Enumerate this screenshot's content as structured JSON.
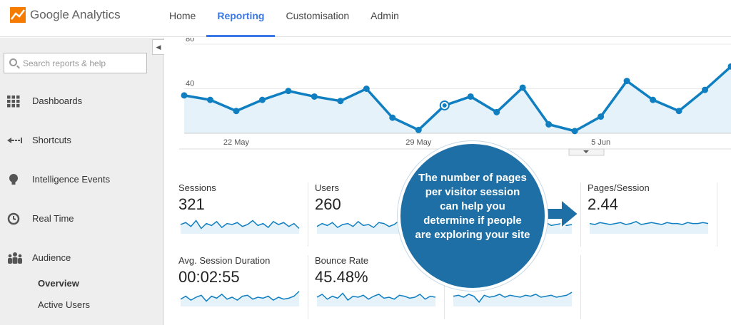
{
  "app": {
    "name": "Google Analytics"
  },
  "nav": [
    {
      "label": "Home",
      "active": false
    },
    {
      "label": "Reporting",
      "active": true
    },
    {
      "label": "Customisation",
      "active": false
    },
    {
      "label": "Admin",
      "active": false
    }
  ],
  "sidebar": {
    "collapse_glyph": "◀",
    "search_placeholder": "Search reports & help",
    "items": [
      {
        "label": "Dashboards",
        "icon": "dashboards-icon"
      },
      {
        "label": "Shortcuts",
        "icon": "shortcuts-icon"
      },
      {
        "label": "Intelligence Events",
        "icon": "lightbulb-icon"
      },
      {
        "label": "Real Time",
        "icon": "clock-icon"
      },
      {
        "label": "Audience",
        "icon": "people-icon"
      }
    ],
    "sub_items": [
      {
        "label": "Overview",
        "selected": true
      },
      {
        "label": "Active Users",
        "selected": false
      }
    ]
  },
  "chart_data": {
    "type": "line",
    "y_ticks": [
      "80",
      "40"
    ],
    "ylim": [
      0,
      80
    ],
    "x_tick_labels": [
      "22 May",
      "29 May",
      "5 Jun"
    ],
    "x_tick_index": [
      2,
      9,
      16
    ],
    "values": [
      34,
      30,
      20,
      30,
      38,
      33,
      29,
      40,
      14,
      3,
      25,
      33,
      19,
      41,
      8,
      2,
      15,
      47,
      30,
      20,
      39,
      60
    ],
    "highlight_index": 10,
    "line_color": "#0f7fc1",
    "fill_color": "#e5f2f9"
  },
  "metrics": [
    {
      "label": "Sessions",
      "value": "321"
    },
    {
      "label": "Users",
      "value": "260"
    },
    {
      "label": "",
      "value": ""
    },
    {
      "label": "Pages/Session",
      "value": "2.44"
    },
    {
      "label": "Avg. Session Duration",
      "value": "00:02:55"
    },
    {
      "label": "Bounce Rate",
      "value": "45.48%"
    },
    {
      "label": "",
      "value": ""
    }
  ],
  "sparklines": [
    [
      8,
      10,
      6,
      12,
      4,
      9,
      7,
      11,
      5,
      9,
      8,
      10,
      6,
      8,
      12,
      7,
      9,
      5,
      11,
      8,
      10,
      6,
      9,
      4
    ],
    [
      6,
      9,
      7,
      10,
      5,
      8,
      9,
      6,
      11,
      7,
      8,
      5,
      10,
      9,
      6,
      8,
      12,
      7,
      9,
      6,
      10,
      8,
      7,
      9
    ],
    [
      7,
      8,
      9,
      6,
      10,
      8,
      7,
      9,
      6,
      8,
      10,
      7,
      9,
      8,
      6,
      9,
      7,
      8,
      10,
      7,
      8,
      9,
      7,
      8
    ],
    [
      9,
      8,
      10,
      9,
      8,
      9,
      10,
      8,
      9,
      11,
      8,
      9,
      10,
      9,
      8,
      10,
      9,
      9,
      8,
      10,
      9,
      9,
      10,
      9
    ],
    [
      6,
      9,
      5,
      8,
      10,
      4,
      9,
      7,
      11,
      6,
      8,
      5,
      9,
      10,
      6,
      8,
      7,
      9,
      5,
      8,
      6,
      7,
      9,
      14
    ],
    [
      8,
      11,
      6,
      9,
      7,
      12,
      5,
      9,
      8,
      10,
      6,
      9,
      11,
      7,
      8,
      6,
      10,
      9,
      7,
      8,
      11,
      6,
      9,
      8
    ],
    [
      9,
      10,
      8,
      11,
      9,
      3,
      10,
      8,
      9,
      11,
      8,
      10,
      9,
      8,
      10,
      9,
      11,
      8,
      9,
      10,
      8,
      9,
      10,
      13
    ]
  ],
  "spark_color": "#0f7fc1",
  "spark_fill": "#e5f2f9",
  "callout": {
    "text": "The number of pages per visitor session can help you determine if people are exploring your site",
    "color": "#1d6fa5"
  }
}
